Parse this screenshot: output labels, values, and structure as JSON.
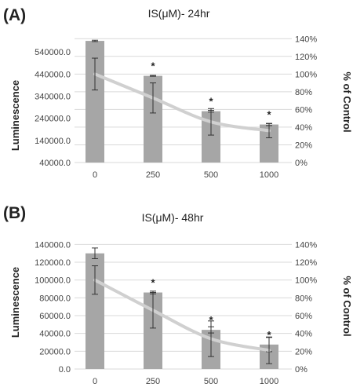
{
  "chart_data": [
    {
      "type": "bar",
      "panel_label": "(A)",
      "title": "IS(μM)- 24hr",
      "categories": [
        "0",
        "250",
        "500",
        "1000"
      ],
      "ylabel": "Luminescence",
      "y2label": "% of Control",
      "ylim": [
        40000,
        640000
      ],
      "y_ticks": [
        "40000.0",
        "140000.0",
        "240000.0",
        "340000.0",
        "440000.0",
        "540000.0"
      ],
      "y2lim": [
        0,
        150
      ],
      "y2_ticks": [
        "0%",
        "20%",
        "40%",
        "60%",
        "80%",
        "100%",
        "120%",
        "140%"
      ],
      "grid": true,
      "series": [
        {
          "kind": "bar",
          "axis": "left",
          "values": [
            590000,
            432000,
            272000,
            212000
          ],
          "errors": [
            3000,
            2000,
            4000,
            5000
          ],
          "significance": [
            "",
            "*",
            "*",
            "*"
          ]
        },
        {
          "kind": "line",
          "axis": "right",
          "values": [
            100,
            73,
            46,
            36
          ],
          "errors": [
            18,
            17,
            15,
            8
          ]
        }
      ]
    },
    {
      "type": "bar",
      "panel_label": "(B)",
      "title": "IS(μM)- 48hr",
      "categories": [
        "0",
        "250",
        "500",
        "1000"
      ],
      "ylabel": "Luminescence",
      "y2label": "% of Control",
      "ylim": [
        0,
        150000
      ],
      "y_ticks": [
        "0.0",
        "20000.0",
        "40000.0",
        "60000.0",
        "80000.0",
        "100000.0",
        "120000.0",
        "140000.0"
      ],
      "y2lim": [
        0,
        150
      ],
      "y2_ticks": [
        "0%",
        "20%",
        "40%",
        "60%",
        "80%",
        "100%",
        "120%",
        "140%"
      ],
      "grid": true,
      "series": [
        {
          "kind": "bar",
          "axis": "left",
          "values": [
            130000,
            86000,
            44000,
            27500
          ],
          "errors": [
            6000,
            1500,
            3500,
            8000
          ],
          "significance": [
            "",
            "*",
            "*",
            "*"
          ]
        },
        {
          "kind": "line",
          "axis": "right",
          "values": [
            100,
            66,
            34,
            21
          ],
          "errors": [
            16,
            20,
            20,
            15
          ]
        }
      ]
    }
  ]
}
